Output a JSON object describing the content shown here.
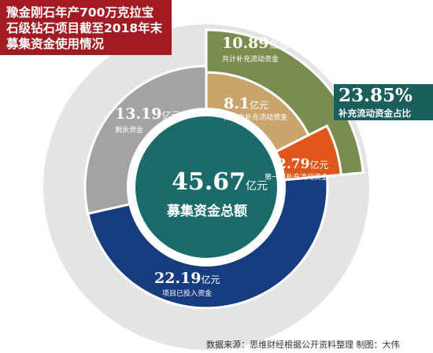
{
  "title_lines": [
    "豫金刚石年产700万克拉宝",
    "石级钻石项目截至2018年末",
    "募集资金使用情况"
  ],
  "colors": {
    "title_bg": "#a21b22",
    "callout_bg": "#1b5f5c",
    "center_fill": "#1a6b6a",
    "outer_ring": "#e4e4e4",
    "inner_ring": "#ffffff",
    "supplement_total_ring": "#7a8d4f"
  },
  "chart_data": {
    "type": "pie",
    "unit": "亿元",
    "total": {
      "value": "45.67",
      "unit": "亿元",
      "label": "募集资金总额"
    },
    "outer_segment": {
      "value": "10.89",
      "unit": "亿元",
      "label": "共计补充流动资金"
    },
    "slices": [
      {
        "value": 22.19,
        "value_text": "22.19",
        "unit": "亿元",
        "label": "项目已投入资金",
        "color": "#173c80"
      },
      {
        "value": 13.19,
        "value_text": "13.19",
        "unit": "亿元",
        "label": "剩余资金",
        "color": "#a3a3a3"
      },
      {
        "value": 8.1,
        "value_text": "8.1",
        "unit": "亿元",
        "label": "第二次补充流动资金",
        "color": "#c9a46c"
      },
      {
        "value": 2.79,
        "value_text": "2.79",
        "unit": "亿元",
        "label": "第一次补充流动资金",
        "color": "#e0561b"
      }
    ],
    "share": {
      "value": "23.85%",
      "label": "补充流动资金占比"
    }
  },
  "source_text": "数据来源：思维财经根据公开资料整理    制图：大伟"
}
